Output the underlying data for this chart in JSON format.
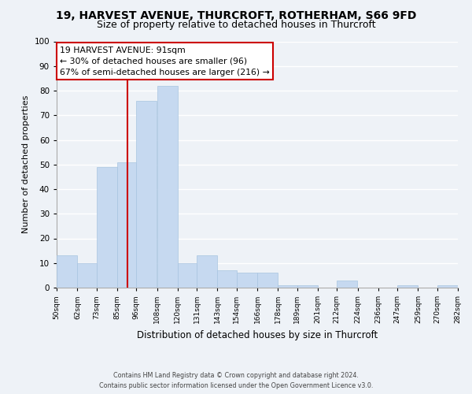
{
  "title": "19, HARVEST AVENUE, THURCROFT, ROTHERHAM, S66 9FD",
  "subtitle": "Size of property relative to detached houses in Thurcroft",
  "xlabel": "Distribution of detached houses by size in Thurcroft",
  "ylabel": "Number of detached properties",
  "bar_color": "#c6d9f0",
  "bar_edge_color": "#a8c4e0",
  "vline_x": 91,
  "vline_color": "#cc0000",
  "annotation_text": "19 HARVEST AVENUE: 91sqm\n← 30% of detached houses are smaller (96)\n67% of semi-detached houses are larger (216) →",
  "annotation_box_color": "white",
  "annotation_box_edge_color": "#cc0000",
  "bin_edges": [
    50,
    62,
    73,
    85,
    96,
    108,
    120,
    131,
    143,
    154,
    166,
    178,
    189,
    201,
    212,
    224,
    236,
    247,
    259,
    270,
    282
  ],
  "bar_heights": [
    13,
    10,
    49,
    51,
    76,
    82,
    10,
    13,
    7,
    6,
    6,
    1,
    1,
    0,
    3,
    0,
    0,
    1,
    0,
    1
  ],
  "ylim": [
    0,
    100
  ],
  "xlim": [
    50,
    282
  ],
  "yticks": [
    0,
    10,
    20,
    30,
    40,
    50,
    60,
    70,
    80,
    90,
    100
  ],
  "tick_labels": [
    "50sqm",
    "62sqm",
    "73sqm",
    "85sqm",
    "96sqm",
    "108sqm",
    "120sqm",
    "131sqm",
    "143sqm",
    "154sqm",
    "166sqm",
    "178sqm",
    "189sqm",
    "201sqm",
    "212sqm",
    "224sqm",
    "236sqm",
    "247sqm",
    "259sqm",
    "270sqm",
    "282sqm"
  ],
  "footer_line1": "Contains HM Land Registry data © Crown copyright and database right 2024.",
  "footer_line2": "Contains public sector information licensed under the Open Government Licence v3.0.",
  "background_color": "#eef2f7",
  "grid_color": "#ffffff",
  "title_fontsize": 10,
  "subtitle_fontsize": 9,
  "annotation_fontsize": 7.8
}
